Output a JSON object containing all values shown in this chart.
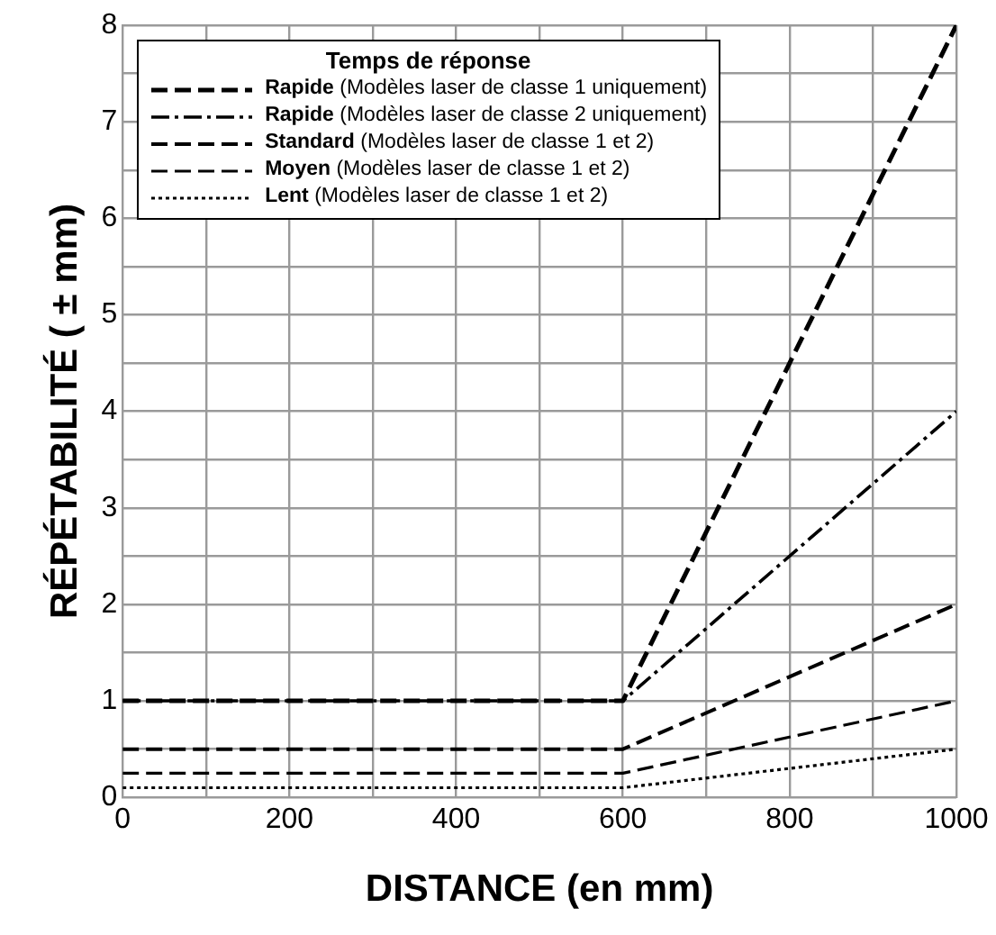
{
  "chart_data": {
    "type": "line",
    "xlabel": "DISTANCE (en mm)",
    "ylabel": "RÉPÉTABILITÉ ( ± mm)",
    "legend_title": "Temps de réponse",
    "legend": "top left",
    "grid": true,
    "marker": "none",
    "x": [
      0,
      600,
      1000
    ],
    "xlim": [
      0,
      1000
    ],
    "xticks": [
      0,
      {
        "value": 100,
        "label": null
      },
      200,
      {
        "value": 300,
        "label": null
      },
      400,
      {
        "value": 500,
        "label": null
      },
      600,
      {
        "value": 700,
        "label": null
      },
      800,
      {
        "value": 900,
        "label": null
      },
      1000
    ],
    "ylim": [
      0,
      8
    ],
    "yticks": [
      0,
      {
        "value": 0.5,
        "label": null
      },
      1,
      {
        "value": 1.5,
        "label": null
      },
      2,
      {
        "value": 2.5,
        "label": null
      },
      3,
      {
        "value": 3.5,
        "label": null
      },
      4,
      {
        "value": 4.5,
        "label": null
      },
      5,
      {
        "value": 5.5,
        "label": null
      },
      6,
      {
        "value": 6.5,
        "label": null
      },
      7,
      {
        "value": 7.5,
        "label": null
      },
      8
    ],
    "series": [
      {
        "name": "Rapide (Modèles laser de classe 1 uniquement)",
        "color": "#000000",
        "values": [
          1,
          1,
          8
        ],
        "line_style": "dashed"
      },
      {
        "name": "Rapide (Modèles laser de classe 2 uniquement)",
        "color": "#000000",
        "values": [
          1,
          1,
          4
        ],
        "line_style": "dashdot"
      },
      {
        "name": "Standard (Modèles laser de classe 1 et 2)",
        "color": "#000000",
        "values": [
          0.5,
          0.5,
          2
        ],
        "line_style": "dashed"
      },
      {
        "name": "Moyen (Modèles laser de classe 1 et 2)",
        "color": "#000000",
        "values": [
          0.25,
          0.25,
          1
        ],
        "line_style": "dashed"
      },
      {
        "name": "Lent (Modèles laser de classe 1 et 2)",
        "color": "#000000",
        "values": [
          0.1,
          0.1,
          0.5
        ],
        "line_style": "dotted"
      }
    ]
  }
}
